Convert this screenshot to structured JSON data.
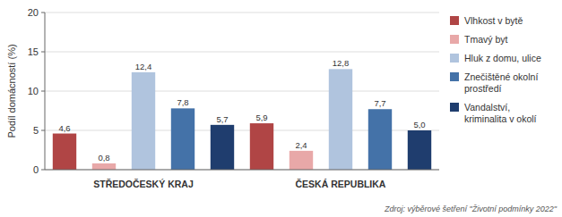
{
  "chart_data": {
    "type": "bar",
    "categories": [
      "STŘEDOČESKÝ KRAJ",
      "ČESKÁ REPUBLIKA"
    ],
    "series": [
      {
        "name": "Vlhkost v bytě",
        "color": "#b04545",
        "values": [
          4.6,
          5.9
        ],
        "value_labels": [
          "4,6",
          "5,9"
        ]
      },
      {
        "name": "Tmavý byt",
        "color": "#e8a8a8",
        "values": [
          0.8,
          2.4
        ],
        "value_labels": [
          "0,8",
          "2,4"
        ]
      },
      {
        "name": "Hluk z domu, ulice",
        "color": "#b0c4de",
        "values": [
          12.4,
          12.8
        ],
        "value_labels": [
          "12,4",
          "12,8"
        ]
      },
      {
        "name": "Znečištěné okol­ní\nprostředí",
        "color": "#4472a8",
        "values": [
          7.8,
          7.7
        ],
        "value_labels": [
          "7,8",
          "7,7"
        ]
      },
      {
        "name": "Vandalství,\nkriminalita v okolí",
        "color": "#1f3d6e",
        "values": [
          5.7,
          5.0
        ],
        "value_labels": [
          "5,7",
          "5,0"
        ]
      }
    ],
    "ylabel": "Podíl domácností (%)",
    "ylim": [
      0,
      20
    ],
    "yticks": [
      0,
      5,
      10,
      15,
      20
    ],
    "grid": true,
    "legend": "right",
    "data_labels": true,
    "annotations": [
      "Zdroj: výběrové šetření \"Životní podmínky 2022\""
    ]
  }
}
